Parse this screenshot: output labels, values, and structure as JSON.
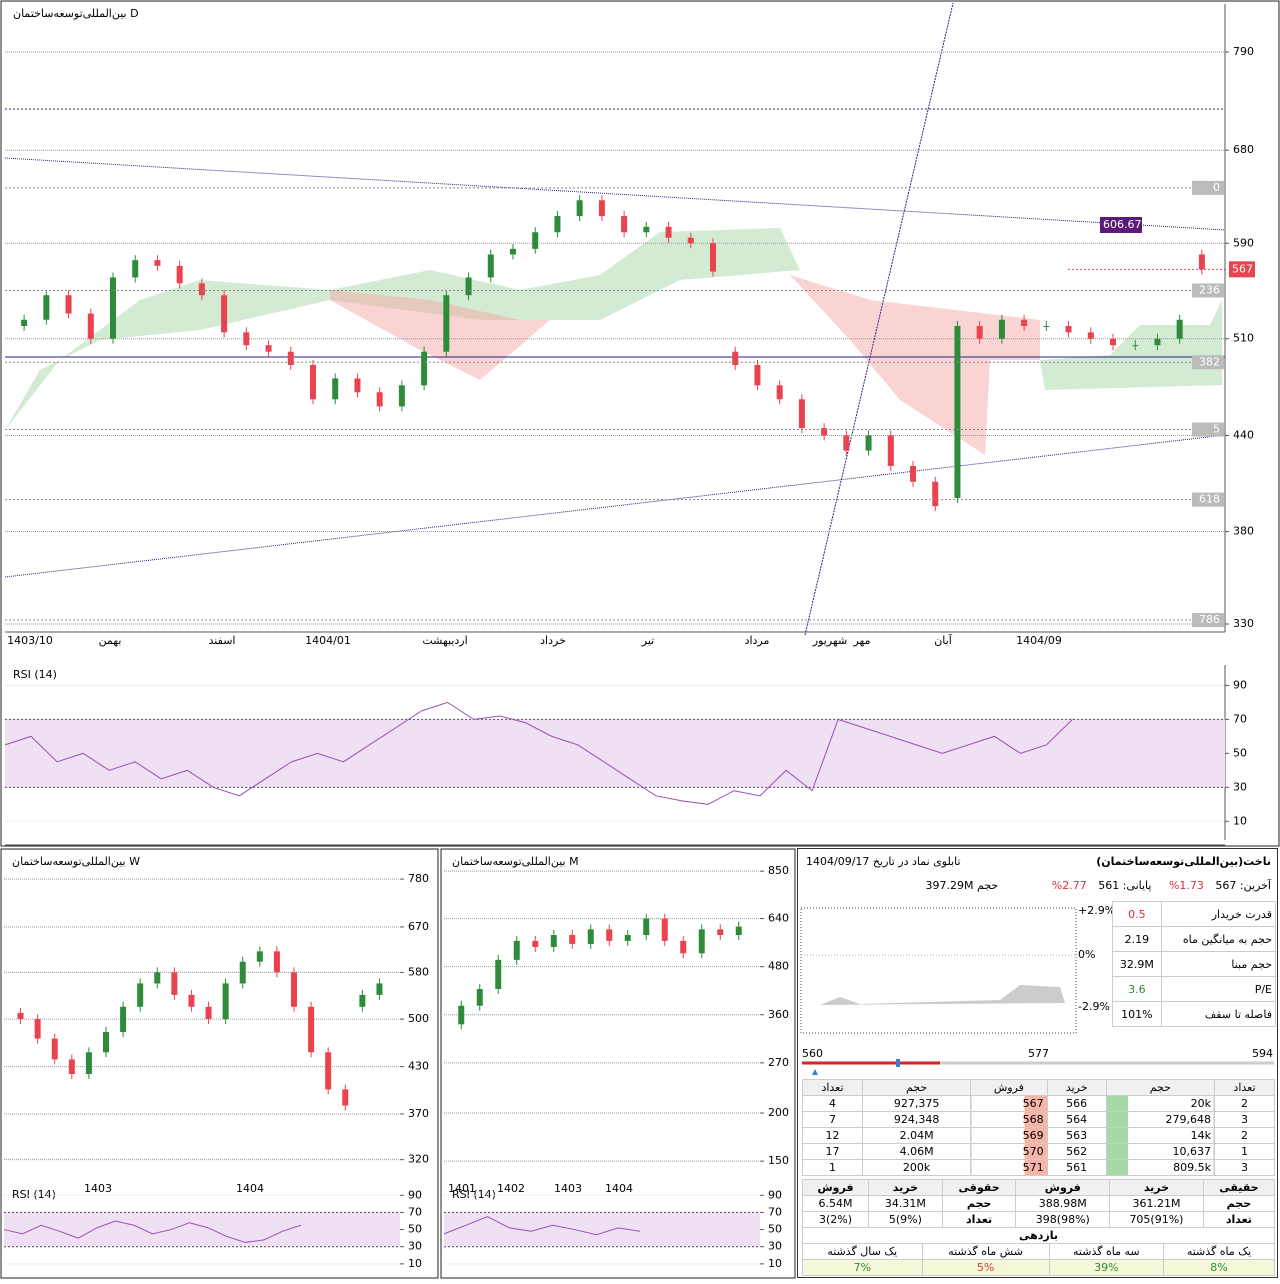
{
  "daily_chart": {
    "type": "candlestick",
    "title": "بین‌المللی‌توسعه‌ساختمان D",
    "log_scale": true,
    "ylim": [
      326,
      850
    ],
    "yticks": [
      790,
      680,
      590,
      510,
      440,
      380,
      330
    ],
    "x_labels": [
      "1403/10",
      "بهمن",
      "اسفند",
      "1404/01",
      "اردیبهشت",
      "خرداد",
      "تیر",
      "مرداد",
      "شهریور",
      "مهر",
      "آبان",
      "1404/09"
    ],
    "open": [
      520,
      525,
      545,
      530,
      510,
      560,
      575,
      570,
      555,
      545,
      515,
      505,
      500,
      490,
      465,
      480,
      470,
      460,
      475,
      500,
      545,
      560,
      580,
      585,
      600,
      615,
      630,
      615,
      600,
      605,
      595,
      590,
      500,
      490,
      475,
      465,
      445,
      440,
      430,
      440,
      420,
      410,
      400,
      520,
      510,
      525,
      520,
      520,
      515,
      510,
      505,
      505,
      510,
      580
    ],
    "close": [
      525,
      545,
      530,
      510,
      560,
      575,
      570,
      555,
      545,
      515,
      505,
      500,
      490,
      465,
      480,
      470,
      460,
      475,
      500,
      545,
      560,
      580,
      585,
      600,
      615,
      630,
      615,
      600,
      605,
      595,
      590,
      565,
      490,
      475,
      465,
      445,
      440,
      430,
      440,
      420,
      410,
      395,
      520,
      510,
      525,
      520,
      520,
      515,
      510,
      505,
      505,
      510,
      525,
      567
    ],
    "up_color": "#2e8b3a",
    "down_color": "#e8434f",
    "last_price": 567,
    "annotation": 606.67,
    "fib_levels": [
      {
        "value": 642,
        "label": "0"
      },
      {
        "value": 549,
        "label": "236"
      },
      {
        "value": 492,
        "label": "382"
      },
      {
        "value": 444,
        "label": "5"
      },
      {
        "value": 399,
        "label": "618"
      },
      {
        "value": 332,
        "label": "786"
      }
    ]
  },
  "daily_rsi": {
    "type": "line",
    "title": "RSI (14)",
    "ylim": [
      -1,
      102
    ],
    "yticks": [
      90,
      70,
      50,
      30,
      10
    ],
    "bands": [
      30,
      70
    ],
    "color": "#9b4fb8",
    "values": [
      55,
      60,
      45,
      50,
      40,
      45,
      35,
      40,
      30,
      25,
      35,
      45,
      50,
      45,
      55,
      65,
      75,
      80,
      70,
      72,
      68,
      60,
      55,
      45,
      35,
      25,
      22,
      20,
      28,
      25,
      40,
      28,
      70,
      65,
      60,
      55,
      50,
      55,
      60,
      50,
      55,
      70
    ]
  },
  "weekly_chart": {
    "type": "candlestick",
    "title": "بین‌المللی‌توسعه‌ساختمان W",
    "log_scale": true,
    "ylim": [
      300,
      850
    ],
    "yticks": [
      780,
      670,
      580,
      500,
      430,
      370,
      320
    ],
    "x_labels": [
      "1403",
      "1404"
    ],
    "open": [
      510,
      500,
      470,
      440,
      420,
      450,
      480,
      520,
      560,
      580,
      540,
      520,
      500,
      560,
      600,
      620,
      580,
      520,
      450,
      400,
      520,
      540
    ],
    "close": [
      500,
      470,
      440,
      420,
      450,
      480,
      520,
      560,
      580,
      540,
      520,
      500,
      560,
      600,
      620,
      580,
      520,
      450,
      400,
      380,
      540,
      560
    ]
  },
  "weekly_rsi": {
    "type": "line",
    "title": "RSI (14)",
    "ylim": [
      -3,
      102
    ],
    "yticks": [
      90,
      70,
      50,
      30,
      10
    ],
    "bands": [
      30,
      70
    ],
    "color": "#9b4fb8",
    "values": [
      50,
      45,
      55,
      48,
      40,
      52,
      60,
      55,
      45,
      50,
      58,
      52,
      42,
      35,
      38,
      48,
      55
    ]
  },
  "monthly_chart": {
    "type": "candlestick",
    "title": "بین‌المللی‌توسعه‌ساختمان M",
    "log_scale": true,
    "ylim": [
      134,
      953
    ],
    "yticks": [
      850,
      640,
      480,
      360,
      270,
      200,
      150
    ],
    "x_labels": [
      "1401",
      "1402",
      "1403",
      "1404"
    ],
    "open": [
      340,
      380,
      420,
      500,
      560,
      540,
      580,
      550,
      600,
      560,
      580,
      640,
      560,
      520,
      600,
      580
    ],
    "close": [
      380,
      420,
      500,
      560,
      540,
      580,
      550,
      600,
      560,
      580,
      640,
      560,
      520,
      600,
      580,
      610
    ]
  },
  "monthly_rsi": {
    "type": "line",
    "title": "RSI (14)",
    "ylim": [
      -3,
      102
    ],
    "yticks": [
      90,
      70,
      50,
      30,
      10
    ],
    "bands": [
      30,
      70
    ],
    "color": "#9b4fb8",
    "values": [
      45,
      55,
      65,
      52,
      48,
      55,
      50,
      44,
      52,
      48
    ]
  },
  "board": {
    "title": "ناخت(بین‌المللی‌توسعه‌ساختمان)",
    "date_text": "تابلوی نماد در تاریخ 1404/09/17",
    "last_label": "آخرین:",
    "last": "567",
    "last_change": "1.73%",
    "close_label": "پایانی:",
    "close": "561",
    "close_change": "2.77%",
    "volume_label": "حجم",
    "volume": "397.29M",
    "stats": [
      {
        "label": "قدرت خریدار",
        "value": "0.5"
      },
      {
        "label": "حجم به میانگین ماه",
        "value": "2.19"
      },
      {
        "label": "حجم مبنا",
        "value": "32.9M"
      },
      {
        "label": "P/E",
        "value": "3.6"
      },
      {
        "label": "فاصله تا سقف",
        "value": "101%"
      }
    ],
    "intraday_ticks": [
      "+2.9%",
      "0%",
      "-2.9%"
    ],
    "range": [
      "560",
      "577",
      "594"
    ],
    "orders": {
      "headers": [
        "تعداد",
        "حجم",
        "فروش",
        "خرید",
        "حجم",
        "تعداد"
      ],
      "rows": [
        [
          "4",
          "927,375",
          "567",
          "566",
          "20k",
          "2"
        ],
        [
          "7",
          "924,348",
          "568",
          "564",
          "279,648",
          "3"
        ],
        [
          "12",
          "2.04M",
          "569",
          "563",
          "14k",
          "2"
        ],
        [
          "17",
          "4.06M",
          "570",
          "562",
          "10,637",
          "1"
        ],
        [
          "1",
          "200k",
          "571",
          "561",
          "809.5k",
          "3"
        ]
      ]
    },
    "traders": {
      "rows": [
        [
          "فروش",
          "خرید",
          "حقوقی",
          "فروش",
          "خرید",
          "حقیقی"
        ],
        [
          "6.54M",
          "34.31M",
          "حجم",
          "388.98M",
          "361.21M",
          "حجم"
        ],
        [
          "3(2%)",
          "5(9%)",
          "تعداد",
          "398(98%)",
          "705(91%)",
          "تعداد"
        ]
      ]
    },
    "returns": {
      "title": "بازدهی",
      "headers": [
        "یک سال گذشته",
        "شش ماه گذشته",
        "سه ماه گذشته",
        "یک ماه گذشته"
      ],
      "values": [
        "7%",
        "5%",
        "39%",
        "8%"
      ]
    }
  }
}
